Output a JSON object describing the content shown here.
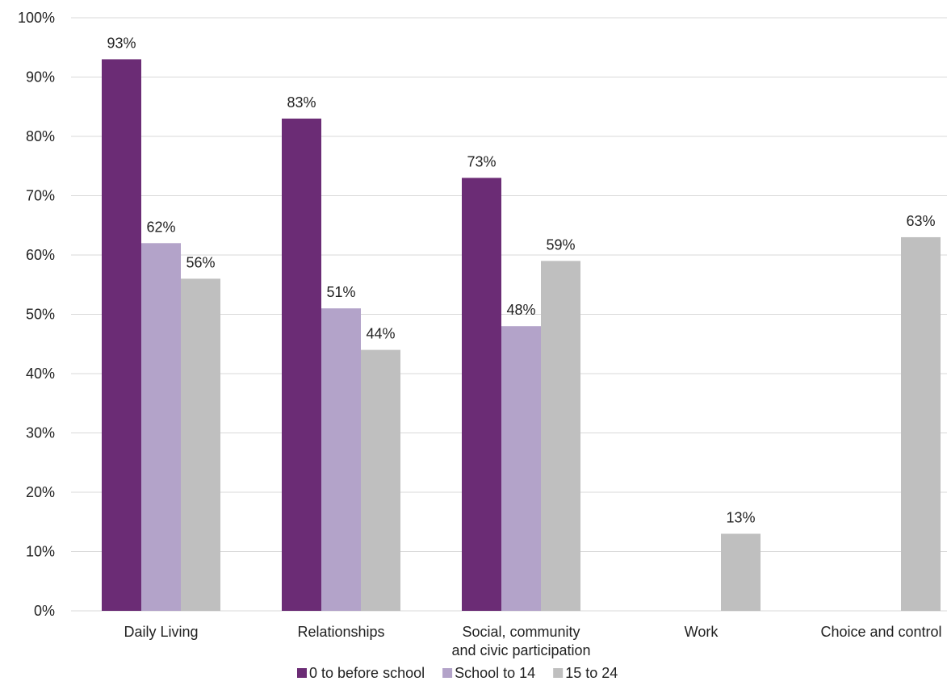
{
  "chart_data": {
    "type": "bar",
    "categories": [
      [
        "Daily Living"
      ],
      [
        "Relationships"
      ],
      [
        "Social, community",
        "and civic participation"
      ],
      [
        "Work"
      ],
      [
        "Choice and control"
      ]
    ],
    "series": [
      {
        "name": "0 to before school",
        "color": "#6b2c75",
        "values": [
          93,
          83,
          73,
          null,
          null
        ],
        "labels": [
          "93%",
          "83%",
          "73%",
          "",
          ""
        ]
      },
      {
        "name": "School to 14",
        "color": "#b3a3c9",
        "values": [
          62,
          51,
          48,
          null,
          null
        ],
        "labels": [
          "62%",
          "51%",
          "48%",
          "",
          ""
        ]
      },
      {
        "name": "15 to 24",
        "color": "#bfbfbf",
        "values": [
          56,
          44,
          59,
          13,
          63
        ],
        "labels": [
          "56%",
          "44%",
          "59%",
          "13%",
          "63%"
        ]
      }
    ],
    "ylim": [
      0,
      100
    ],
    "yticks": [
      "0%",
      "10%",
      "20%",
      "30%",
      "40%",
      "50%",
      "60%",
      "70%",
      "80%",
      "90%",
      "100%"
    ],
    "grid": true,
    "legend_position": "bottom"
  }
}
